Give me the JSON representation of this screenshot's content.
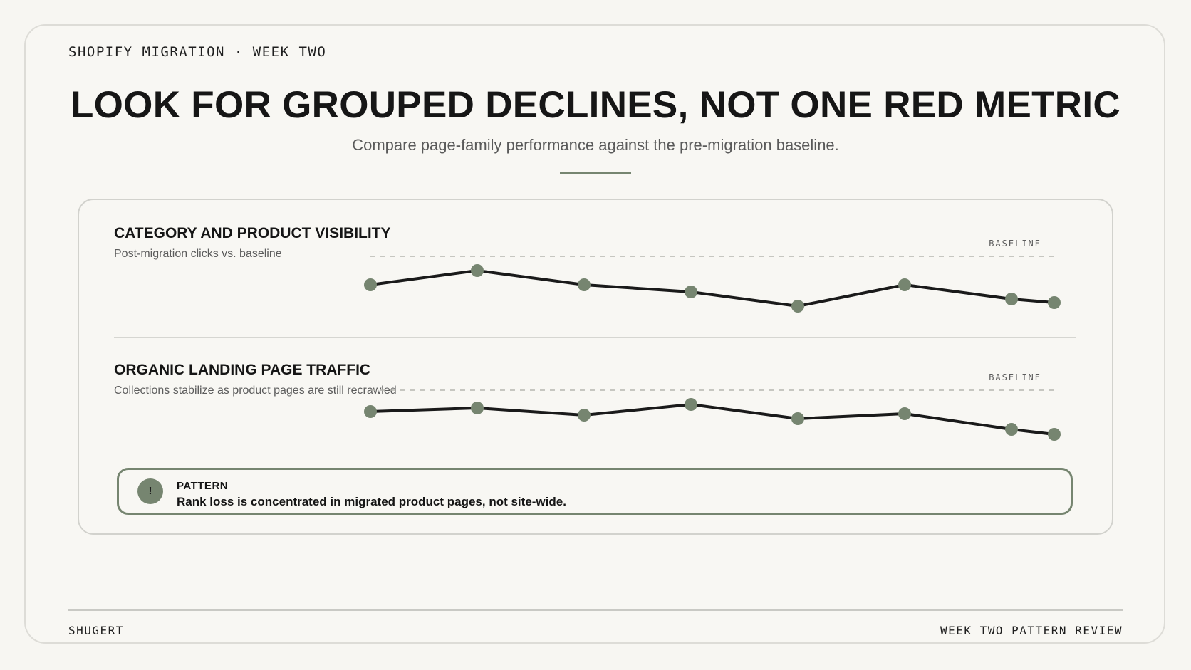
{
  "header": {
    "kicker": "SHOPIFY MIGRATION · WEEK TWO",
    "title": "LOOK FOR GROUPED DECLINES, NOT ONE RED METRIC",
    "subtitle": "Compare page-family performance against the pre-migration baseline."
  },
  "chart_data": [
    {
      "type": "line",
      "title": "CATEGORY AND PRODUCT VISIBILITY",
      "subtitle": "Post-migration clicks vs. baseline",
      "baseline_label": "BASELINE",
      "baseline": 100,
      "ylim": [
        82,
        104
      ],
      "grid": false,
      "series": [
        {
          "values": [
            96,
            98,
            96,
            95,
            93,
            96,
            94,
            93.5
          ]
        }
      ]
    },
    {
      "type": "line",
      "title": "ORGANIC LANDING PAGE TRAFFIC",
      "subtitle": "Collections stabilize as product pages are still recrawled",
      "baseline_label": "BASELINE",
      "baseline": 100,
      "ylim": [
        82,
        104
      ],
      "grid": false,
      "series": [
        {
          "values": [
            97,
            97.5,
            96.5,
            98,
            96,
            96.7,
            94.5,
            93.8
          ]
        }
      ]
    }
  ],
  "callout": {
    "icon": "exclamation-icon",
    "icon_glyph": "!",
    "label": "PATTERN",
    "text": "Rank loss is concentrated in migrated product pages, not site-wide."
  },
  "footer": {
    "left": "SHUGERT",
    "right": "WEEK TWO PATTERN REVIEW"
  },
  "colors": {
    "accent": "#768570",
    "line": "#1a1a1a",
    "baseline": "#b5b5b0"
  }
}
